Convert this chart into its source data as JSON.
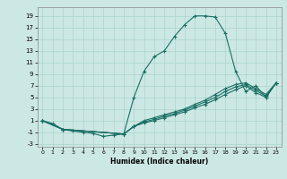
{
  "xlabel": "Humidex (Indice chaleur)",
  "bg_color": "#cce8e4",
  "grid_color": "#aad4cc",
  "line_color": "#1a6e64",
  "xlim": [
    -0.5,
    23.5
  ],
  "ylim": [
    -3.5,
    20.5
  ],
  "xticks": [
    0,
    1,
    2,
    3,
    4,
    5,
    6,
    7,
    8,
    9,
    10,
    11,
    12,
    13,
    14,
    15,
    16,
    17,
    18,
    19,
    20,
    21,
    22,
    23
  ],
  "yticks": [
    -3,
    -1,
    1,
    3,
    5,
    7,
    9,
    11,
    13,
    15,
    17,
    19
  ],
  "line1_x": [
    0,
    1,
    2,
    3,
    4,
    5,
    6,
    7,
    8,
    9,
    10,
    11,
    12,
    13,
    14,
    15,
    16,
    17,
    18,
    19,
    20,
    21,
    22,
    23
  ],
  "line1_y": [
    1,
    0.5,
    -0.5,
    -0.8,
    -1,
    -1.2,
    -1.7,
    -1.5,
    -1.3,
    5,
    9.5,
    12,
    13,
    15.5,
    17.5,
    19,
    19,
    18.8,
    16,
    9.5,
    6,
    7,
    5,
    7.5
  ],
  "line2_x": [
    0,
    2,
    8,
    9,
    10,
    11,
    12,
    13,
    14,
    15,
    16,
    17,
    18,
    19,
    20,
    21,
    22,
    23
  ],
  "line2_y": [
    1,
    -0.5,
    -1.3,
    0,
    1,
    1.5,
    2,
    2.5,
    3,
    3.8,
    4.5,
    5.5,
    6.5,
    7.2,
    7.5,
    6.5,
    5.5,
    7.5
  ],
  "line3_x": [
    0,
    2,
    8,
    9,
    10,
    11,
    12,
    13,
    14,
    15,
    16,
    17,
    18,
    19,
    20,
    21,
    22,
    23
  ],
  "line3_y": [
    1,
    -0.5,
    -1.3,
    0,
    0.8,
    1.2,
    1.8,
    2.2,
    2.8,
    3.5,
    4.2,
    5.0,
    6.0,
    6.8,
    7.2,
    6.2,
    5.2,
    7.5
  ],
  "line4_x": [
    0,
    2,
    8,
    9,
    10,
    11,
    12,
    13,
    14,
    15,
    16,
    17,
    18,
    19,
    20,
    21,
    22,
    23
  ],
  "line4_y": [
    1,
    -0.5,
    -1.3,
    0,
    0.6,
    1.0,
    1.5,
    2.0,
    2.5,
    3.2,
    3.8,
    4.6,
    5.5,
    6.3,
    7.0,
    5.8,
    5.0,
    7.5
  ]
}
